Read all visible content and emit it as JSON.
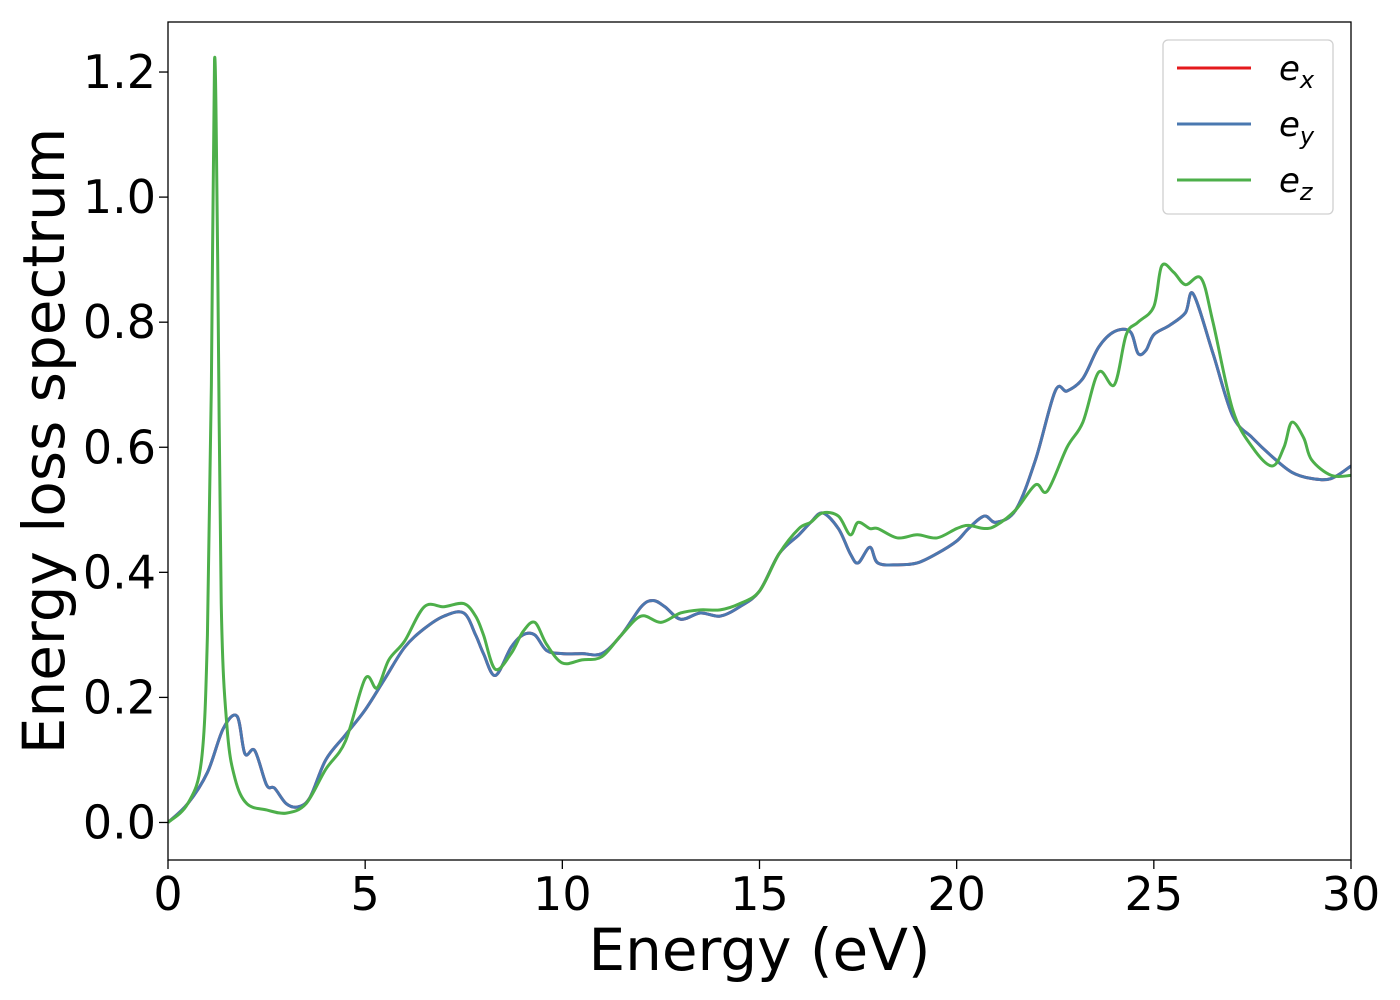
{
  "chart_data": {
    "type": "line",
    "title": "",
    "xlabel": "Energy (eV)",
    "ylabel": "Energy loss spectrum",
    "xlim": [
      0,
      30
    ],
    "ylim": [
      -0.06,
      1.28
    ],
    "xticks": [
      0,
      5,
      10,
      15,
      20,
      25,
      30
    ],
    "xtick_labels": [
      "0",
      "5",
      "10",
      "15",
      "20",
      "25",
      "30"
    ],
    "yticks": [
      0.0,
      0.2,
      0.4,
      0.6,
      0.8,
      1.0,
      1.2
    ],
    "ytick_labels": [
      "0.0",
      "0.2",
      "0.4",
      "0.6",
      "0.8",
      "1.0",
      "1.2"
    ],
    "grid": false,
    "legend_position": "top-right",
    "series": [
      {
        "name": "e_x",
        "label_base": "e",
        "label_sub": "x",
        "color": "#e41a1c",
        "x": [
          0,
          0.5,
          1.0,
          1.4,
          1.75,
          1.95,
          2.2,
          2.5,
          2.7,
          3.0,
          3.3,
          3.6,
          4.0,
          4.5,
          5.0,
          5.5,
          6.0,
          6.5,
          7.0,
          7.5,
          7.8,
          8.0,
          8.3,
          8.7,
          9.0,
          9.3,
          9.6,
          10.0,
          10.5,
          11.0,
          11.5,
          12.0,
          12.3,
          12.6,
          13.0,
          13.5,
          14.0,
          14.5,
          15.0,
          15.5,
          16.0,
          16.3,
          16.6,
          17.0,
          17.3,
          17.5,
          17.8,
          18.0,
          18.5,
          19.0,
          19.5,
          20.0,
          20.3,
          20.7,
          21.0,
          21.5,
          22.0,
          22.5,
          22.8,
          23.2,
          23.6,
          24.0,
          24.4,
          24.6,
          24.8,
          25.0,
          25.4,
          25.8,
          26.0,
          26.5,
          27.0,
          27.5,
          28.0,
          28.5,
          29.0,
          29.5,
          30.0
        ],
        "values": [
          0.0,
          0.03,
          0.08,
          0.15,
          0.17,
          0.11,
          0.115,
          0.06,
          0.055,
          0.03,
          0.025,
          0.04,
          0.1,
          0.14,
          0.18,
          0.23,
          0.28,
          0.31,
          0.33,
          0.335,
          0.3,
          0.27,
          0.235,
          0.28,
          0.3,
          0.3,
          0.275,
          0.27,
          0.27,
          0.27,
          0.3,
          0.345,
          0.355,
          0.345,
          0.325,
          0.335,
          0.33,
          0.345,
          0.37,
          0.43,
          0.46,
          0.48,
          0.495,
          0.47,
          0.43,
          0.415,
          0.44,
          0.415,
          0.412,
          0.415,
          0.43,
          0.45,
          0.47,
          0.49,
          0.48,
          0.5,
          0.58,
          0.69,
          0.69,
          0.71,
          0.76,
          0.785,
          0.785,
          0.75,
          0.755,
          0.78,
          0.795,
          0.815,
          0.845,
          0.75,
          0.65,
          0.615,
          0.585,
          0.56,
          0.55,
          0.55,
          0.57
        ]
      },
      {
        "name": "e_y",
        "label_base": "e",
        "label_sub": "y",
        "color": "#4a78b0",
        "x": [
          0,
          0.5,
          1.0,
          1.4,
          1.75,
          1.95,
          2.2,
          2.5,
          2.7,
          3.0,
          3.3,
          3.6,
          4.0,
          4.5,
          5.0,
          5.5,
          6.0,
          6.5,
          7.0,
          7.5,
          7.8,
          8.0,
          8.3,
          8.7,
          9.0,
          9.3,
          9.6,
          10.0,
          10.5,
          11.0,
          11.5,
          12.0,
          12.3,
          12.6,
          13.0,
          13.5,
          14.0,
          14.5,
          15.0,
          15.5,
          16.0,
          16.3,
          16.6,
          17.0,
          17.3,
          17.5,
          17.8,
          18.0,
          18.5,
          19.0,
          19.5,
          20.0,
          20.3,
          20.7,
          21.0,
          21.5,
          22.0,
          22.5,
          22.8,
          23.2,
          23.6,
          24.0,
          24.4,
          24.6,
          24.8,
          25.0,
          25.4,
          25.8,
          26.0,
          26.5,
          27.0,
          27.5,
          28.0,
          28.5,
          29.0,
          29.5,
          30.0
        ],
        "values": [
          0.0,
          0.03,
          0.08,
          0.15,
          0.17,
          0.11,
          0.115,
          0.06,
          0.055,
          0.03,
          0.025,
          0.04,
          0.1,
          0.14,
          0.18,
          0.23,
          0.28,
          0.31,
          0.33,
          0.335,
          0.3,
          0.27,
          0.235,
          0.28,
          0.3,
          0.3,
          0.275,
          0.27,
          0.27,
          0.27,
          0.3,
          0.345,
          0.355,
          0.345,
          0.325,
          0.335,
          0.33,
          0.345,
          0.37,
          0.43,
          0.46,
          0.48,
          0.495,
          0.47,
          0.43,
          0.415,
          0.44,
          0.415,
          0.412,
          0.415,
          0.43,
          0.45,
          0.47,
          0.49,
          0.48,
          0.5,
          0.58,
          0.69,
          0.69,
          0.71,
          0.76,
          0.785,
          0.785,
          0.75,
          0.755,
          0.78,
          0.795,
          0.815,
          0.845,
          0.75,
          0.65,
          0.615,
          0.585,
          0.56,
          0.55,
          0.55,
          0.57
        ]
      },
      {
        "name": "e_z",
        "label_base": "e",
        "label_sub": "z",
        "color": "#4daf4a",
        "x": [
          0,
          0.5,
          0.85,
          1.0,
          1.1,
          1.18,
          1.26,
          1.35,
          1.5,
          1.7,
          2.0,
          2.5,
          3.0,
          3.5,
          4.0,
          4.5,
          5.0,
          5.3,
          5.6,
          6.0,
          6.5,
          7.0,
          7.5,
          7.8,
          8.0,
          8.3,
          8.7,
          9.0,
          9.3,
          9.6,
          10.0,
          10.5,
          11.0,
          11.5,
          12.0,
          12.5,
          13.0,
          13.5,
          14.0,
          14.5,
          15.0,
          15.5,
          16.0,
          16.3,
          16.6,
          17.0,
          17.3,
          17.5,
          17.8,
          18.0,
          18.5,
          19.0,
          19.5,
          20.0,
          20.3,
          20.7,
          21.0,
          21.5,
          22.0,
          22.3,
          22.8,
          23.2,
          23.6,
          24.0,
          24.3,
          24.6,
          25.0,
          25.2,
          25.5,
          25.8,
          26.2,
          26.5,
          27.0,
          27.5,
          28.0,
          28.3,
          28.5,
          28.8,
          29.0,
          29.5,
          30.0
        ],
        "values": [
          0.0,
          0.03,
          0.1,
          0.3,
          0.7,
          1.22,
          0.9,
          0.35,
          0.15,
          0.07,
          0.03,
          0.02,
          0.015,
          0.03,
          0.085,
          0.13,
          0.23,
          0.215,
          0.26,
          0.29,
          0.345,
          0.345,
          0.35,
          0.33,
          0.3,
          0.245,
          0.27,
          0.305,
          0.32,
          0.285,
          0.255,
          0.26,
          0.265,
          0.3,
          0.33,
          0.32,
          0.335,
          0.34,
          0.34,
          0.35,
          0.37,
          0.43,
          0.47,
          0.48,
          0.495,
          0.49,
          0.46,
          0.48,
          0.47,
          0.47,
          0.455,
          0.46,
          0.455,
          0.47,
          0.475,
          0.47,
          0.475,
          0.5,
          0.54,
          0.53,
          0.6,
          0.64,
          0.72,
          0.7,
          0.78,
          0.8,
          0.825,
          0.89,
          0.88,
          0.86,
          0.87,
          0.8,
          0.66,
          0.6,
          0.57,
          0.6,
          0.64,
          0.615,
          0.58,
          0.555,
          0.555
        ]
      }
    ]
  }
}
